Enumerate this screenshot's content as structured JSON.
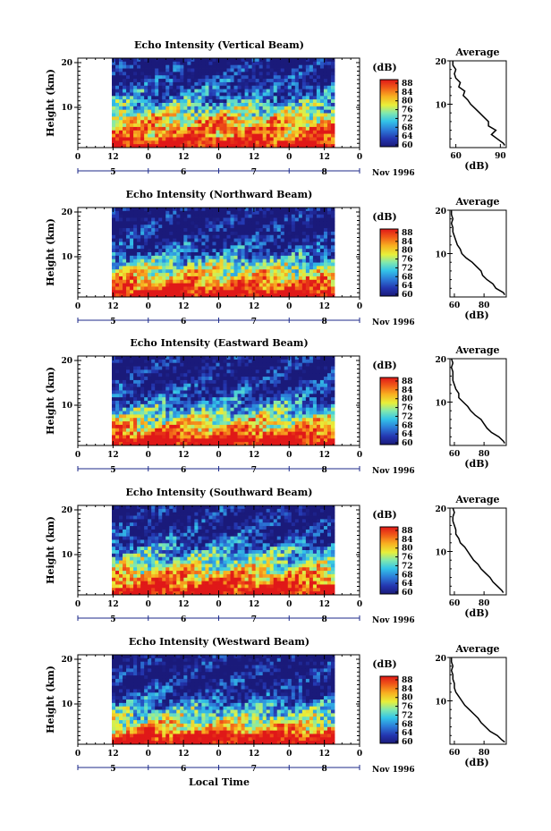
{
  "figure": {
    "xaxis_label": "Local Time",
    "month_label": "Nov 1996"
  },
  "chart_data": [
    {
      "type": "heatmap",
      "title": "Echo Intensity (Vertical Beam)",
      "ylabel": "Height (km)",
      "ylim": [
        0,
        20
      ],
      "y_ticks": [
        "20",
        "10"
      ],
      "x_ticks": [
        "0",
        "12",
        "0",
        "12",
        "0",
        "12",
        "0",
        "12",
        "0"
      ],
      "date_ticks": [
        "5",
        "6",
        "7",
        "8"
      ],
      "colorbar": {
        "unit": "(dB)",
        "ticks": [
          "88",
          "84",
          "80",
          "76",
          "72",
          "68",
          "64",
          "60"
        ],
        "range": [
          60,
          90
        ]
      },
      "profile": {
        "title": "Average",
        "xlabel": "(dB)",
        "x_ticks": [
          "60",
          "90"
        ],
        "xlim": [
          56,
          94
        ],
        "y_ticks": [
          "20",
          "10"
        ],
        "ylim": [
          0,
          20
        ],
        "heights": [
          0.5,
          1,
          2,
          3,
          4,
          5,
          6,
          7,
          8,
          9,
          10,
          11,
          12,
          13,
          14,
          15,
          16,
          17,
          18,
          19,
          20
        ],
        "values": [
          93,
          92,
          88,
          84,
          87,
          82,
          82,
          79,
          76,
          73,
          70,
          68,
          65,
          66,
          62,
          63,
          60,
          59,
          60,
          58,
          58
        ]
      }
    },
    {
      "type": "heatmap",
      "title": "Echo Intensity (Northward Beam)",
      "ylabel": "Height (km)",
      "ylim": [
        0,
        20
      ],
      "y_ticks": [
        "20",
        "10"
      ],
      "x_ticks": [
        "0",
        "12",
        "0",
        "12",
        "0",
        "12",
        "0",
        "12",
        "0"
      ],
      "date_ticks": [
        "5",
        "6",
        "7",
        "8"
      ],
      "colorbar": {
        "unit": "(dB)",
        "ticks": [
          "88",
          "84",
          "80",
          "76",
          "72",
          "68",
          "64",
          "60"
        ],
        "range": [
          60,
          90
        ]
      },
      "profile": {
        "title": "Average",
        "xlabel": "(dB)",
        "x_ticks": [
          "60",
          "80"
        ],
        "xlim": [
          57,
          95
        ],
        "y_ticks": [
          "20",
          "10"
        ],
        "ylim": [
          0,
          20
        ],
        "heights": [
          0.5,
          1,
          2,
          3,
          4,
          5,
          6,
          7,
          8,
          9,
          10,
          11,
          12,
          13,
          14,
          15,
          16,
          17,
          18,
          19,
          20
        ],
        "values": [
          94,
          93,
          88,
          86,
          82,
          79,
          78,
          75,
          72,
          68,
          65,
          64,
          62,
          61,
          60,
          59,
          59,
          58,
          59,
          58,
          58
        ]
      }
    },
    {
      "type": "heatmap",
      "title": "Echo Intensity (Eastward Beam)",
      "ylabel": "Height (km)",
      "ylim": [
        0,
        20
      ],
      "y_ticks": [
        "20",
        "10"
      ],
      "x_ticks": [
        "0",
        "12",
        "0",
        "12",
        "0",
        "12",
        "0",
        "12",
        "0"
      ],
      "date_ticks": [
        "5",
        "6",
        "7",
        "8"
      ],
      "colorbar": {
        "unit": "(dB)",
        "ticks": [
          "88",
          "84",
          "80",
          "76",
          "72",
          "68",
          "64",
          "60"
        ],
        "range": [
          60,
          90
        ]
      },
      "profile": {
        "title": "Average",
        "xlabel": "(dB)",
        "x_ticks": [
          "60",
          "80"
        ],
        "xlim": [
          57,
          95
        ],
        "y_ticks": [
          "20",
          "10"
        ],
        "ylim": [
          0,
          20
        ],
        "heights": [
          0.5,
          1,
          2,
          3,
          4,
          5,
          6,
          7,
          8,
          9,
          10,
          11,
          12,
          13,
          14,
          15,
          16,
          17,
          18,
          19,
          20
        ],
        "values": [
          94,
          93,
          90,
          85,
          82,
          80,
          78,
          74,
          71,
          69,
          66,
          63,
          63,
          61,
          60,
          59,
          59,
          59,
          58,
          59,
          58
        ]
      }
    },
    {
      "type": "heatmap",
      "title": "Echo Intensity (Southward Beam)",
      "ylabel": "Height (km)",
      "ylim": [
        0,
        20
      ],
      "y_ticks": [
        "20",
        "10"
      ],
      "x_ticks": [
        "0",
        "12",
        "0",
        "12",
        "0",
        "12",
        "0",
        "12",
        "0"
      ],
      "date_ticks": [
        "5",
        "6",
        "7",
        "8"
      ],
      "colorbar": {
        "unit": "(dB)",
        "ticks": [
          "88",
          "84",
          "80",
          "76",
          "72",
          "68",
          "64",
          "60"
        ],
        "range": [
          60,
          90
        ]
      },
      "profile": {
        "title": "Average",
        "xlabel": "(dB)",
        "x_ticks": [
          "60",
          "80"
        ],
        "xlim": [
          57,
          95
        ],
        "y_ticks": [
          "20",
          "10"
        ],
        "ylim": [
          0,
          20
        ],
        "heights": [
          0.5,
          1,
          2,
          3,
          4,
          5,
          6,
          7,
          8,
          9,
          10,
          11,
          12,
          13,
          14,
          15,
          16,
          17,
          18,
          19,
          20
        ],
        "values": [
          93,
          92,
          89,
          86,
          84,
          81,
          78,
          76,
          73,
          71,
          69,
          67,
          64,
          63,
          61,
          61,
          60,
          59,
          59,
          60,
          59
        ]
      }
    },
    {
      "type": "heatmap",
      "title": "Echo Intensity (Westward Beam)",
      "ylabel": "Height (km)",
      "ylim": [
        0,
        20
      ],
      "y_ticks": [
        "20",
        "10"
      ],
      "x_ticks": [
        "0",
        "12",
        "0",
        "12",
        "0",
        "12",
        "0",
        "12",
        "0"
      ],
      "date_ticks": [
        "5",
        "6",
        "7",
        "8"
      ],
      "colorbar": {
        "unit": "(dB)",
        "ticks": [
          "88",
          "84",
          "80",
          "76",
          "72",
          "68",
          "64",
          "60"
        ],
        "range": [
          60,
          90
        ]
      },
      "profile": {
        "title": "Average",
        "xlabel": "(dB)",
        "x_ticks": [
          "60",
          "80"
        ],
        "xlim": [
          57,
          95
        ],
        "y_ticks": [
          "20",
          "10"
        ],
        "ylim": [
          0,
          20
        ],
        "heights": [
          0.5,
          1,
          2,
          3,
          4,
          5,
          6,
          7,
          8,
          9,
          10,
          11,
          12,
          13,
          14,
          15,
          16,
          17,
          18,
          19,
          20
        ],
        "values": [
          94,
          92,
          89,
          84,
          81,
          78,
          76,
          73,
          70,
          67,
          65,
          63,
          61,
          60,
          60,
          59,
          59,
          58,
          59,
          58,
          58
        ]
      }
    }
  ]
}
